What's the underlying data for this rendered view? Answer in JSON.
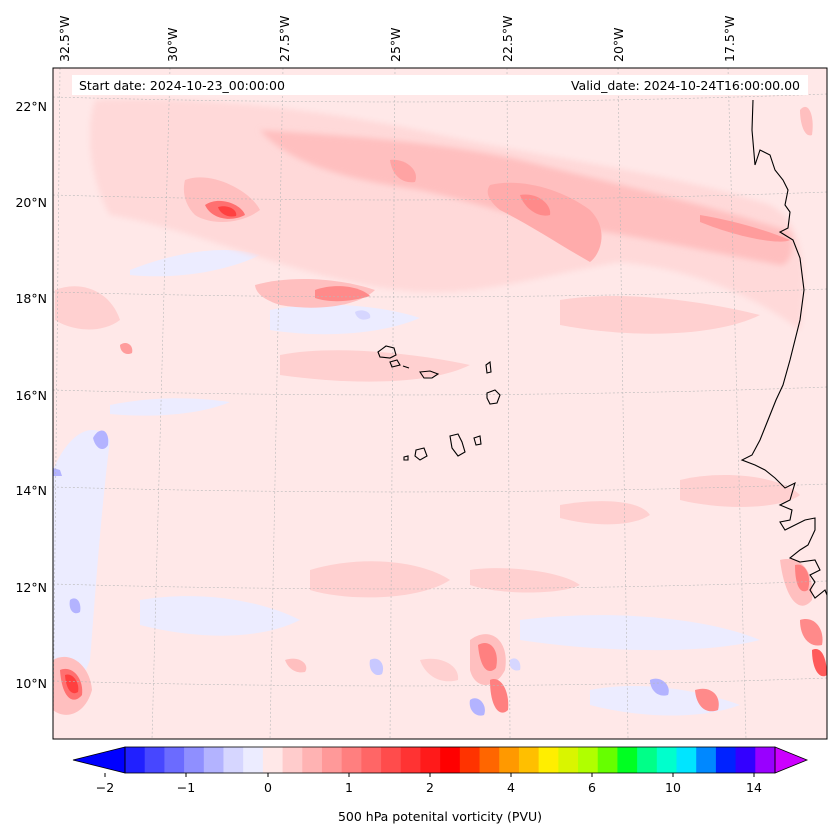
{
  "map": {
    "start_date": "Start date: 2024-10-23_00:00:00",
    "valid_date": "Valid_date: 2024-10-24T16:00:00.00",
    "lon_labels": [
      "32.5°W",
      "30°W",
      "27.5°W",
      "25°W",
      "22.5°W",
      "20°W",
      "17.5°W"
    ],
    "lat_labels": [
      "22°N",
      "20°N",
      "18°N",
      "16°N",
      "14°N",
      "12°N",
      "10°N"
    ],
    "colorbar": {
      "label": "500 hPa potenital vorticity (PVU)",
      "tick_labels": [
        "−2",
        "−1",
        "0",
        "1",
        "2",
        "4",
        "6",
        "10",
        "14"
      ],
      "colors": [
        "#0000ff",
        "#2020ff",
        "#4747ff",
        "#6b6bff",
        "#8f8fff",
        "#b3b3ff",
        "#d6d6ff",
        "#ececff",
        "#ffe8e8",
        "#ffcccc",
        "#ffb3b3",
        "#ff9999",
        "#ff7f7f",
        "#ff6666",
        "#ff4c4c",
        "#ff3333",
        "#ff1a1a",
        "#ff0000",
        "#ff3300",
        "#ff6600",
        "#ff9900",
        "#ffbf00",
        "#ffee00",
        "#d9f500",
        "#b0ff00",
        "#66ff00",
        "#00ff22",
        "#00ff88",
        "#00ffcc",
        "#00e5ff",
        "#0088ff",
        "#0022ff",
        "#3300ff",
        "#9900ff",
        "#cc00ff"
      ]
    }
  }
}
